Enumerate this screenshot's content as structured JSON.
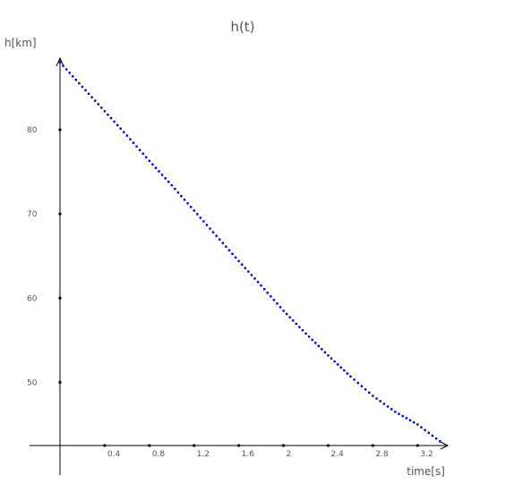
{
  "chart_data": {
    "type": "scatter",
    "title": "h(t)",
    "xlabel": "time[s]",
    "ylabel": "h[km]",
    "xlim": [
      0,
      3.45
    ],
    "ylim": [
      42.5,
      88.5
    ],
    "x_ticks": [
      0.4,
      0.8,
      1.2,
      1.6,
      2,
      2.4,
      2.8,
      3.2
    ],
    "x_tick_labels": [
      "0.4",
      "0.8",
      "1.2",
      "1.6",
      "2",
      "2.4",
      "2.8",
      "3.2"
    ],
    "y_ticks": [
      50,
      60,
      70,
      80
    ],
    "y_tick_labels": [
      "50",
      "60",
      "70",
      "80"
    ],
    "grid": false,
    "series": [
      {
        "color": "#0000cc",
        "x": [
          0,
          0.2,
          0.4,
          0.6,
          0.8,
          1.0,
          1.2,
          1.4,
          1.6,
          1.8,
          2.0,
          2.2,
          2.4,
          2.6,
          2.8,
          3.0,
          3.2,
          3.3,
          3.4
        ],
        "y": [
          88,
          85.1,
          82.2,
          79.3,
          76.3,
          73.4,
          70.4,
          67.4,
          64.4,
          61.5,
          58.5,
          55.8,
          53.2,
          50.7,
          48.4,
          46.5,
          45.0,
          44.0,
          43.0
        ]
      }
    ]
  }
}
